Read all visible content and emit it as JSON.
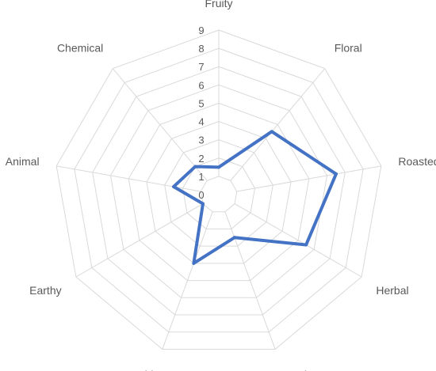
{
  "chart_data": {
    "type": "radar",
    "categories": [
      "Fruity",
      "Floral",
      "Roasted",
      "Herbal",
      "Woody",
      "Vegetable",
      "Earthy",
      "Animal",
      "Chemical"
    ],
    "series": [
      {
        "values": [
          1.5,
          4.5,
          6.5,
          5.5,
          2.5,
          4.0,
          1.0,
          2.5,
          2.0
        ],
        "color": "#4472c4"
      }
    ],
    "rlim": [
      0,
      9
    ],
    "ticks": [
      0,
      1,
      2,
      3,
      4,
      5,
      6,
      7,
      8,
      9
    ],
    "grid": true,
    "legend": "none"
  }
}
